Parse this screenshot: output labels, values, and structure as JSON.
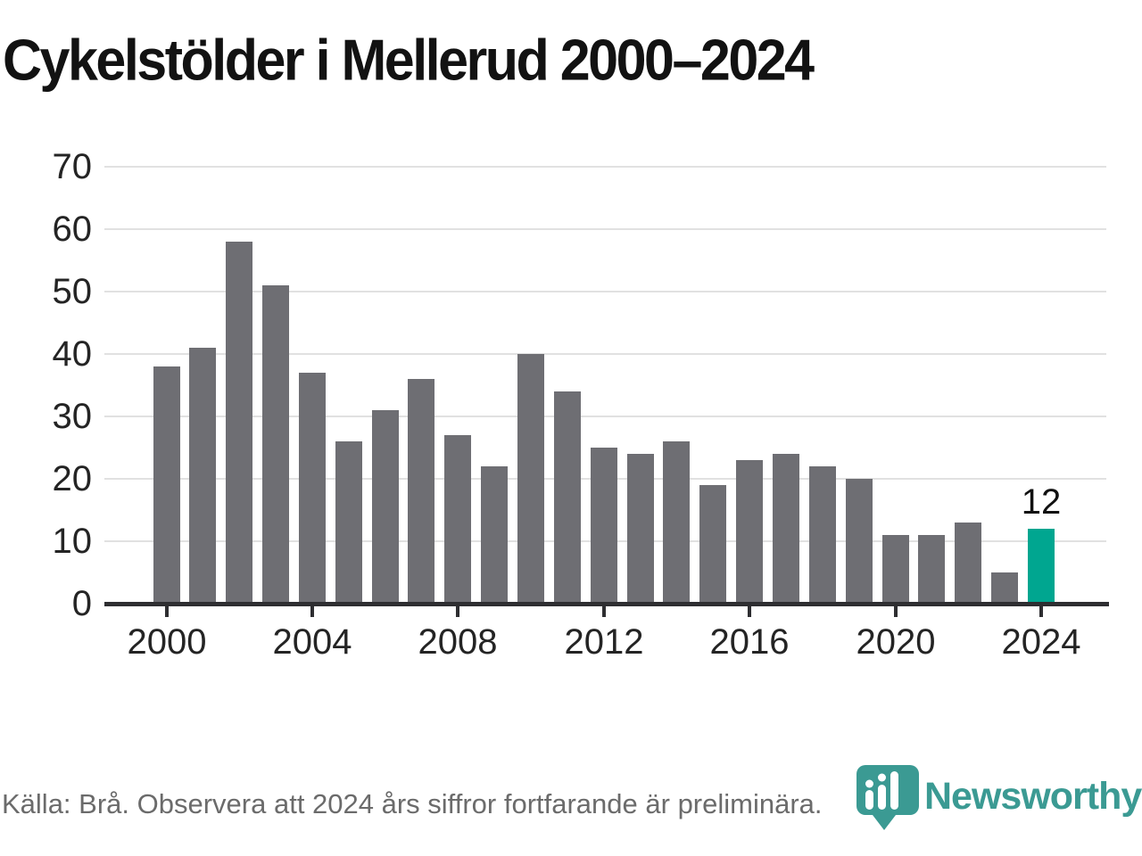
{
  "title": "Cykelstölder i Mellerud 2000–2024",
  "chart_data": {
    "type": "bar",
    "title": "Cykelstölder i Mellerud 2000–2024",
    "categories": [
      "2000",
      "2001",
      "2002",
      "2003",
      "2004",
      "2005",
      "2006",
      "2007",
      "2008",
      "2009",
      "2010",
      "2011",
      "2012",
      "2013",
      "2014",
      "2015",
      "2016",
      "2017",
      "2018",
      "2019",
      "2020",
      "2021",
      "2022",
      "2023",
      "2024"
    ],
    "values": [
      38,
      41,
      58,
      51,
      37,
      26,
      31,
      36,
      27,
      22,
      40,
      34,
      25,
      24,
      26,
      19,
      23,
      24,
      22,
      20,
      11,
      11,
      13,
      5,
      12
    ],
    "highlight": {
      "category": "2024",
      "index": 24,
      "value": 12,
      "label": "12"
    },
    "ylim": [
      0,
      75
    ],
    "yticks": [
      0,
      10,
      20,
      30,
      40,
      50,
      60,
      70
    ],
    "xticks": [
      "2000",
      "2004",
      "2008",
      "2012",
      "2016",
      "2020",
      "2024"
    ],
    "grid": "horizontal-only",
    "legend": "none"
  },
  "colors": {
    "bar": "#6e6e73",
    "highlight": "#00a690",
    "grid": "#e1e1e1",
    "axis": "#2e2e31",
    "logo_teal": "#3b9a93"
  },
  "footer": {
    "source_text": "Källa: Brå. Observera att 2024 års siffror fortfarande är preliminära."
  },
  "logo": {
    "wordmark": "Newsworthy",
    "icon": "newsworthy-pin-barchart-icon"
  }
}
